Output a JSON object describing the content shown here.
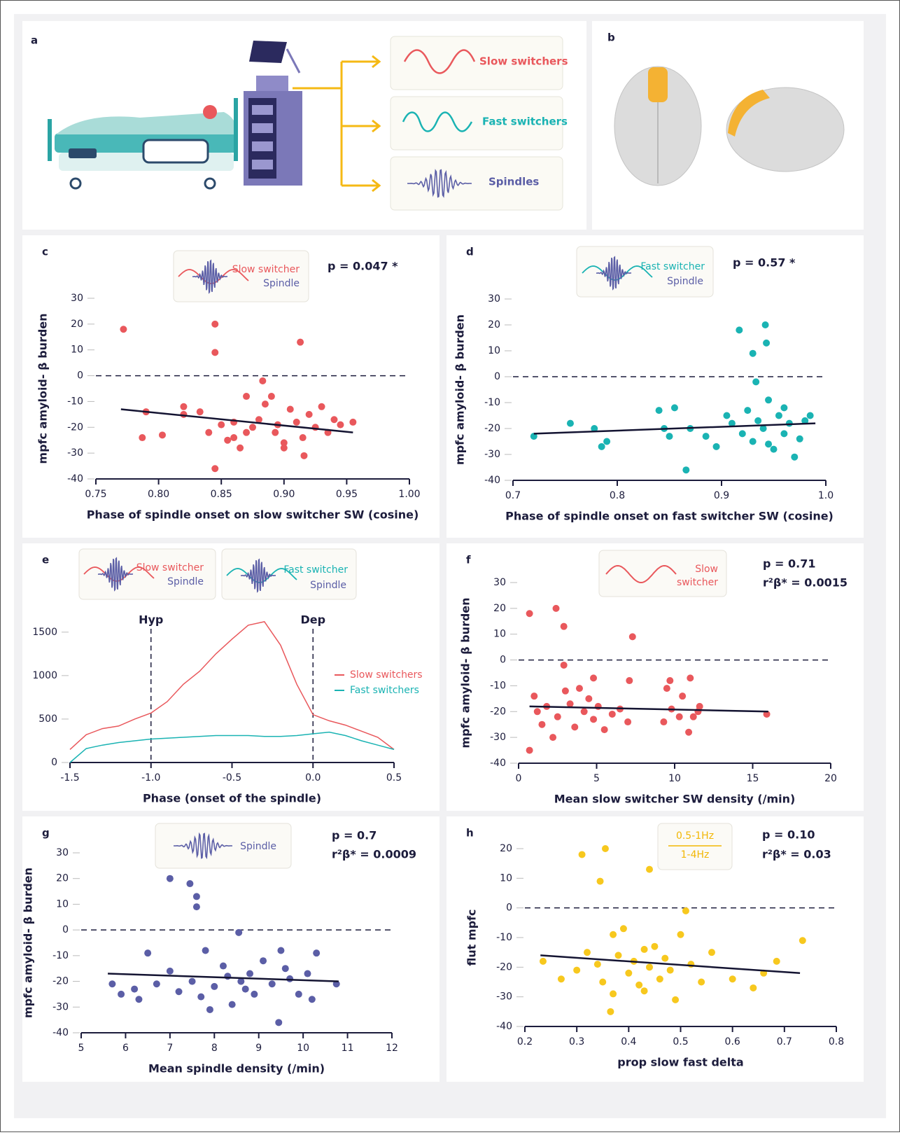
{
  "illustration": {
    "a": {
      "label": "a",
      "items": [
        "Slow switchers",
        "Fast switchers",
        "Spindles"
      ]
    },
    "b": {
      "label": "b"
    }
  },
  "chart_data": [
    {
      "type": "scatter",
      "panel": "c",
      "inset": [
        "Slow switcher",
        "Spindle"
      ],
      "annotations": [
        "p = 0.047 *"
      ],
      "xlabel": "Phase of spindle onset on slow switcher SW (cosine)",
      "ylabel": "mpfc amyloid- β burden",
      "color": "#e9585c",
      "xlim": [
        0.75,
        1.0
      ],
      "xticks": [
        0.75,
        {
          "value": 0.8,
          "label": "0.80"
        },
        0.85,
        {
          "value": 0.9,
          "label": "0.90"
        },
        0.95,
        {
          "value": 1.0,
          "label": "1.00"
        }
      ],
      "ylim": [
        -40,
        30
      ],
      "yticks": [
        -40,
        -30,
        -20,
        -10,
        0,
        10,
        20,
        30
      ],
      "hline": 0,
      "fit": {
        "x": [
          0.77,
          0.955
        ],
        "y": [
          -13,
          -22
        ]
      },
      "x": [
        0.772,
        0.845,
        0.845,
        0.913,
        0.883,
        0.845,
        0.916,
        0.79,
        0.787,
        0.803,
        0.82,
        0.82,
        0.833,
        0.84,
        0.85,
        0.855,
        0.86,
        0.865,
        0.87,
        0.875,
        0.88,
        0.885,
        0.89,
        0.893,
        0.9,
        0.905,
        0.91,
        0.915,
        0.92,
        0.925,
        0.93,
        0.935,
        0.94,
        0.945,
        0.955,
        0.87,
        0.895,
        0.9,
        0.86
      ],
      "values": [
        18,
        20,
        9,
        13,
        -2,
        -36,
        -31,
        -14,
        -24,
        -23,
        -12,
        -15,
        -14,
        -22,
        -19,
        -25,
        -18,
        -28,
        -8,
        -20,
        -17,
        -11,
        -8,
        -22,
        -26,
        -13,
        -18,
        -24,
        -15,
        -20,
        -12,
        -22,
        -17,
        -19,
        -18,
        -22,
        -19,
        -28,
        -24
      ]
    },
    {
      "type": "scatter",
      "panel": "d",
      "inset": [
        "Fast switcher",
        "Spindle"
      ],
      "annotations": [
        "p = 0.57 *"
      ],
      "xlabel": "Phase of spindle onset on fast switcher SW (cosine)",
      "ylabel": "mpfc amyloid- β burden",
      "color": "#1ab3b3",
      "xlim": [
        0.7,
        1.0
      ],
      "xticks": [
        0.7,
        0.8,
        0.9,
        {
          "value": 1.0,
          "label": "1.0"
        }
      ],
      "ylim": [
        -40,
        30
      ],
      "yticks": [
        -40,
        -30,
        -20,
        -10,
        0,
        10,
        20,
        30
      ],
      "hline": 0,
      "fit": {
        "x": [
          0.72,
          0.99
        ],
        "y": [
          -22,
          -18
        ]
      },
      "x": [
        0.917,
        0.942,
        0.943,
        0.93,
        0.933,
        0.866,
        0.72,
        0.755,
        0.778,
        0.79,
        0.785,
        0.84,
        0.855,
        0.845,
        0.85,
        0.87,
        0.885,
        0.895,
        0.905,
        0.91,
        0.92,
        0.925,
        0.93,
        0.935,
        0.94,
        0.945,
        0.95,
        0.955,
        0.96,
        0.965,
        0.97,
        0.975,
        0.98,
        0.985,
        0.96,
        0.945
      ],
      "values": [
        18,
        20,
        13,
        9,
        -2,
        -36,
        -23,
        -18,
        -20,
        -25,
        -27,
        -13,
        -12,
        -20,
        -23,
        -20,
        -23,
        -27,
        -15,
        -18,
        -22,
        -13,
        -25,
        -17,
        -20,
        -9,
        -28,
        -15,
        -22,
        -18,
        -31,
        -24,
        -17,
        -15,
        -12,
        -26
      ]
    },
    {
      "type": "line",
      "panel": "e",
      "inset": [
        "Slow switcher",
        "Spindle",
        "Fast switcher",
        "Spindle"
      ],
      "xlabel": "Phase (onset of the spindle)",
      "xlim": [
        -1.5,
        0.5
      ],
      "xticks": [
        -1.5,
        {
          "value": -1.0,
          "label": "-1.0"
        },
        -0.5,
        {
          "value": 0,
          "label": "0.0"
        },
        0.5
      ],
      "ylim": [
        0,
        1700
      ],
      "yticks": [
        0,
        500,
        1000,
        1500
      ],
      "vlines": [
        {
          "value": -1.0,
          "label": "Hyp"
        },
        {
          "value": 0,
          "label": "Dep"
        }
      ],
      "x": [
        -1.5,
        -1.4,
        -1.3,
        -1.2,
        -1.1,
        -1.0,
        -0.9,
        -0.8,
        -0.7,
        -0.6,
        -0.5,
        -0.4,
        -0.3,
        -0.2,
        -0.1,
        0,
        0.1,
        0.2,
        0.3,
        0.4,
        0.5
      ],
      "series": [
        {
          "name": "Slow switchers",
          "color": "#e9585c",
          "values": [
            150,
            320,
            390,
            420,
            500,
            570,
            700,
            900,
            1050,
            1250,
            1420,
            1580,
            1620,
            1350,
            900,
            550,
            480,
            430,
            360,
            290,
            150
          ]
        },
        {
          "name": "Fast switchers",
          "color": "#1ab3b3",
          "values": [
            0,
            160,
            200,
            230,
            250,
            270,
            280,
            290,
            300,
            310,
            310,
            310,
            300,
            300,
            310,
            330,
            350,
            310,
            250,
            200,
            150
          ]
        }
      ]
    },
    {
      "type": "scatter",
      "panel": "f",
      "inset": [
        "Slow",
        "switcher"
      ],
      "annotations": [
        "p = 0.71",
        "r²β* = 0.0015"
      ],
      "xlabel": "Mean slow switcher SW density (/min)",
      "ylabel": "mpfc amyloid- β burden",
      "color": "#e9585c",
      "xlim": [
        0,
        20
      ],
      "xticks": [
        0,
        5,
        10,
        15,
        20
      ],
      "ylim": [
        -40,
        30
      ],
      "yticks": [
        -40,
        -30,
        -20,
        -10,
        0,
        10,
        20,
        30
      ],
      "hline": 0,
      "fit": {
        "x": [
          0.7,
          16
        ],
        "y": [
          -18,
          -20
        ]
      },
      "x": [
        0.7,
        0.7,
        2.4,
        2.9,
        2.9,
        7.3,
        4.8,
        7.1,
        9.7,
        11,
        10.9,
        15.9,
        1,
        1.2,
        1.5,
        1.8,
        2.2,
        2.5,
        3,
        3.3,
        3.6,
        3.9,
        4.2,
        4.5,
        4.8,
        5.1,
        5.5,
        6,
        6.5,
        7,
        9.5,
        9.8,
        10.3,
        10.5,
        11.2,
        11.6,
        11.5,
        9.3
      ],
      "values": [
        18,
        -35,
        20,
        13,
        -2,
        9,
        -7,
        -8,
        -8,
        -7,
        -28,
        -21,
        -14,
        -20,
        -25,
        -18,
        -30,
        -22,
        -12,
        -17,
        -26,
        -11,
        -20,
        -15,
        -23,
        -18,
        -27,
        -21,
        -19,
        -24,
        -11,
        -19,
        -22,
        -14,
        -22,
        -18,
        -20,
        -24
      ]
    },
    {
      "type": "scatter",
      "panel": "g",
      "inset": [
        "Spindle"
      ],
      "annotations": [
        "p = 0.7",
        "r²β* = 0.0009"
      ],
      "xlabel": "Mean spindle density (/min)",
      "ylabel": "mpfc amyloid- β burden",
      "color": "#5b5ea6",
      "xlim": [
        5,
        12
      ],
      "xticks": [
        5,
        6,
        7,
        8,
        9,
        10,
        11,
        12
      ],
      "ylim": [
        -40,
        30
      ],
      "yticks": [
        -40,
        -30,
        -20,
        -10,
        0,
        10,
        20,
        30
      ],
      "hline": 0,
      "fit": {
        "x": [
          5.6,
          10.8
        ],
        "y": [
          -17,
          -20
        ]
      },
      "x": [
        7,
        7.45,
        7.6,
        7.6,
        8.55,
        9.45,
        5.7,
        5.9,
        6.2,
        6.3,
        6.5,
        6.7,
        7,
        7.2,
        7.5,
        7.7,
        7.8,
        8,
        8.2,
        8.3,
        8.4,
        8.6,
        8.8,
        8.9,
        9.1,
        9.3,
        9.5,
        9.7,
        9.9,
        10.1,
        10.3,
        10.2,
        10.75,
        7.9,
        8.7,
        9.6
      ],
      "values": [
        20,
        18,
        13,
        9,
        -1,
        -36,
        -21,
        -25,
        -23,
        -27,
        -9,
        -21,
        -16,
        -24,
        -20,
        -26,
        -8,
        -22,
        -14,
        -18,
        -29,
        -20,
        -17,
        -25,
        -12,
        -21,
        -8,
        -19,
        -25,
        -17,
        -9,
        -27,
        -21,
        -31,
        -23,
        -15
      ]
    },
    {
      "type": "scatter",
      "panel": "h",
      "inset": [
        "0.5-1Hz",
        "1-4Hz"
      ],
      "annotations": [
        "p = 0.10",
        "r²β* = 0.03"
      ],
      "xlabel": "prop slow fast delta",
      "ylabel": "flut mpfc",
      "color": "#f7c81e",
      "xlim": [
        0.2,
        0.8
      ],
      "xticks": [
        0.2,
        0.3,
        0.4,
        0.5,
        0.6,
        0.7,
        0.8
      ],
      "ylim": [
        -40,
        20
      ],
      "yticks": [
        -40,
        -30,
        -20,
        -10,
        0,
        10,
        20
      ],
      "hline": 0,
      "fit": {
        "x": [
          0.23,
          0.73
        ],
        "y": [
          -16,
          -22
        ]
      },
      "x": [
        0.31,
        0.355,
        0.345,
        0.44,
        0.51,
        0.365,
        0.735,
        0.235,
        0.27,
        0.3,
        0.32,
        0.34,
        0.35,
        0.37,
        0.38,
        0.39,
        0.4,
        0.41,
        0.42,
        0.43,
        0.44,
        0.45,
        0.46,
        0.47,
        0.48,
        0.49,
        0.5,
        0.52,
        0.54,
        0.56,
        0.6,
        0.64,
        0.66,
        0.685,
        0.37,
        0.43
      ],
      "values": [
        18,
        20,
        9,
        13,
        -1,
        -35,
        -11,
        -18,
        -24,
        -21,
        -15,
        -19,
        -25,
        -9,
        -16,
        -7,
        -22,
        -18,
        -26,
        -14,
        -20,
        -13,
        -24,
        -17,
        -21,
        -31,
        -9,
        -19,
        -25,
        -15,
        -24,
        -27,
        -22,
        -18,
        -29,
        -28
      ]
    }
  ]
}
